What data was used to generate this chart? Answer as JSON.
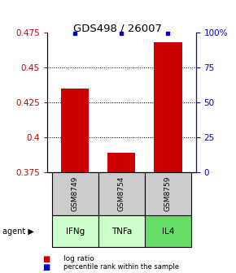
{
  "title": "GDS498 / 26007",
  "samples": [
    "GSM8749",
    "GSM8754",
    "GSM8759"
  ],
  "agents": [
    "IFNg",
    "TNFa",
    "IL4"
  ],
  "log_ratios": [
    0.435,
    0.389,
    0.468
  ],
  "percentile_ranks": [
    99.5,
    99.5,
    99.5
  ],
  "ylim_left": [
    0.375,
    0.475
  ],
  "ylim_right": [
    0,
    100
  ],
  "yticks_left": [
    0.375,
    0.4,
    0.425,
    0.45,
    0.475
  ],
  "yticks_right": [
    0,
    25,
    50,
    75,
    100
  ],
  "ytick_labels_left": [
    "0.375",
    "0.4",
    "0.425",
    "0.45",
    "0.475"
  ],
  "ytick_labels_right": [
    "0",
    "25",
    "50",
    "75",
    "100%"
  ],
  "bar_color": "#cc0000",
  "pct_color": "#0000cc",
  "sample_box_color": "#cccccc",
  "agent_colors": [
    "#ccffcc",
    "#ccffcc",
    "#66dd66"
  ],
  "legend_log_color": "#cc0000",
  "legend_pct_color": "#0000cc",
  "bar_bottom": 0.375,
  "bar_width": 0.6
}
